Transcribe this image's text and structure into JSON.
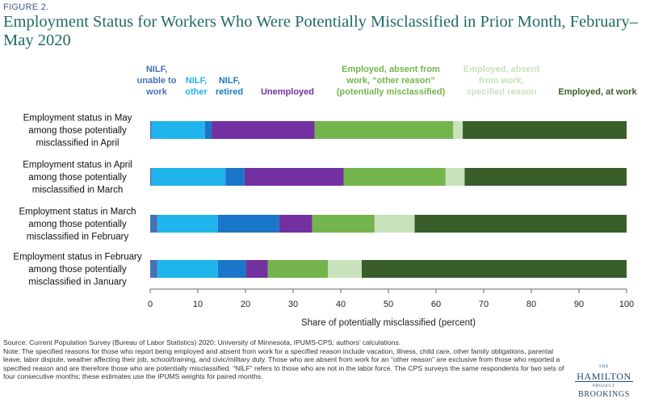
{
  "figure_label": "FIGURE 2.",
  "colors": {
    "nilf_unable": "#4670b8",
    "nilf_other": "#1fb4ec",
    "nilf_retired": "#1a76c8",
    "unemployed": "#7230a0",
    "absent_other": "#74b44c",
    "absent_specified": "#c8e2bc",
    "at_work": "#3a5e2a",
    "title": "#1f6a66"
  },
  "chart_data": {
    "type": "bar",
    "orientation": "horizontal",
    "stacked": true,
    "title": "Employment Status for Workers Who Were Potentially Misclassified in Prior Month, February–May 2020",
    "xlabel": "Share of potentially misclassified (percent)",
    "ylabel": "",
    "xlim": [
      0,
      100
    ],
    "xticks": [
      "0",
      "10",
      "20",
      "30",
      "40",
      "50",
      "60",
      "70",
      "80",
      "90",
      "100"
    ],
    "grid": false,
    "legend_position": "top",
    "categories": [
      [
        "Employment status in May",
        "among those potentially",
        "misclassified in April"
      ],
      [
        "Employment status in April",
        "among those potentially",
        "misclassified in March"
      ],
      [
        "Employment status in March",
        "among those potentially",
        "misclassified in February"
      ],
      [
        "Employment status in February",
        "among those potentially",
        "misclassified in January"
      ]
    ],
    "series": [
      {
        "name": [
          "NILF,",
          "unable to",
          "work"
        ],
        "color_key": "nilf_unable",
        "values": [
          0.3,
          0.3,
          1.5,
          1.5
        ]
      },
      {
        "name": [
          "NILF,",
          "other"
        ],
        "color_key": "nilf_other",
        "values": [
          11.2,
          15.5,
          12.7,
          12.7
        ]
      },
      {
        "name": [
          "NILF,",
          "retired"
        ],
        "color_key": "nilf_retired",
        "values": [
          1.4,
          4.0,
          12.9,
          5.9
        ]
      },
      {
        "name": [
          "Unemployed"
        ],
        "color_key": "unemployed",
        "values": [
          21.6,
          20.8,
          6.9,
          4.6
        ]
      },
      {
        "name": [
          "Employed, absent from",
          "work, “other reason”",
          "(potentially misclassified)"
        ],
        "color_key": "absent_other",
        "values": [
          29.1,
          21.4,
          13.1,
          12.6
        ]
      },
      {
        "name": [
          "Employed, absent",
          "from work,",
          "specified reason"
        ],
        "color_key": "absent_specified",
        "values": [
          2.0,
          4.0,
          8.4,
          7.1
        ]
      },
      {
        "name": [
          "Employed, at work"
        ],
        "color_key": "at_work",
        "values": [
          34.4,
          34.0,
          44.5,
          55.6
        ]
      }
    ]
  },
  "notes": {
    "source": "Source: Current Population Survey (Bureau of Labor Statistics) 2020; University of Minnesota, IPUMS-CPS; authors’ calculations.",
    "note": "Note: The specified reasons for those who report being employed and absent from work for a specified reason include vacation, illness, child care, other family obligations, parental leave, labor dispute, weather affecting their job, school/training, and civic/military duty. Those who are absent from work for an “other reason” are exclusive from those who reported a specified reason and are therefore those who are potentially misclassified. “NILF” refers to those who are not in the labor force. The CPS surveys the same respondents for two sets of four consecutive months; these estimates use the IPUMS weights for paired months."
  },
  "logo": {
    "the": "THE",
    "hamilton": "HAMILTON",
    "project": "PROJECT",
    "brookings": "BROOKINGS"
  }
}
